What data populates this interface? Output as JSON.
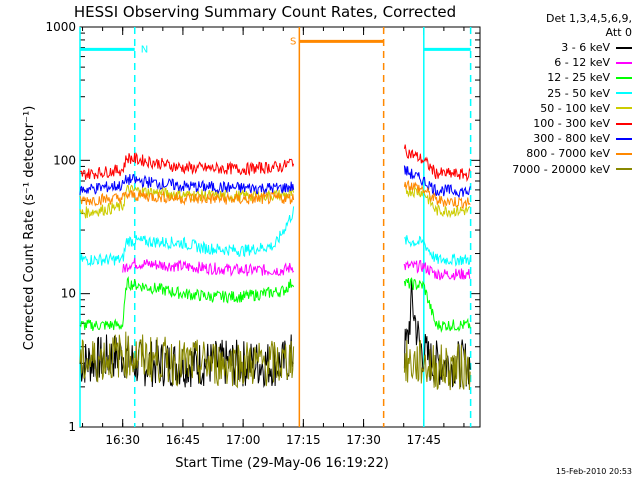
{
  "chart_data": {
    "type": "line",
    "title": "HESSI Observing Summary Count Rates, Corrected",
    "xlabel": "Start Time (29-May-06 16:19:22)",
    "ylabel": "Corrected Count Rate (s⁻¹ detector⁻¹)",
    "x_units": "minutes",
    "xlim": [
      "16:19:22",
      "17:59:00"
    ],
    "ylim": [
      1,
      1000
    ],
    "y_scale": "log",
    "x_ticks": [
      "16:30",
      "16:45",
      "17:00",
      "17:15",
      "17:30",
      "17:45"
    ],
    "y_ticks": [
      "1",
      "10",
      "100",
      "1000"
    ],
    "gaps": [
      [
        "17:12:40",
        "17:40:00"
      ]
    ],
    "series": [
      {
        "name": "3 - 6 keV",
        "color": "#000000",
        "x": [
          "16:19:22",
          "16:30:00",
          "16:33:00",
          "16:45:00",
          "17:00:00",
          "17:10:00",
          "17:12:40",
          "17:40:00",
          "17:41:00",
          "17:42:00",
          "17:44:00",
          "17:47:00",
          "17:55:00",
          "17:56:40"
        ],
        "y": [
          3.0,
          3.5,
          3.0,
          3.0,
          3.0,
          3.0,
          3.5,
          3.5,
          4.5,
          9.0,
          4.0,
          3.0,
          3.0,
          3.0
        ]
      },
      {
        "name": "6 - 12 keV",
        "color": "#ff00ff",
        "x": [
          "16:30:00",
          "16:32:00",
          "16:45:00",
          "17:00:00",
          "17:10:00",
          "17:12:40",
          "17:40:00",
          "17:45:00",
          "17:48:00",
          "17:56:40"
        ],
        "y": [
          15.0,
          17.0,
          16.0,
          15.0,
          15.0,
          16.0,
          16.0,
          16.0,
          14.0,
          14.0
        ]
      },
      {
        "name": "12 - 25 keV",
        "color": "#00ff00",
        "x": [
          "16:19:22",
          "16:30:00",
          "16:31:00",
          "16:45:00",
          "16:52:00",
          "17:00:00",
          "17:10:00",
          "17:12:40",
          "17:40:00",
          "17:45:00",
          "17:48:00",
          "17:56:40"
        ],
        "y": [
          5.8,
          5.8,
          12.0,
          10.0,
          9.5,
          9.5,
          10.5,
          12.5,
          12.0,
          11.5,
          5.8,
          5.8
        ]
      },
      {
        "name": "25 - 50 keV",
        "color": "#00ffff",
        "x": [
          "16:19:22",
          "16:30:00",
          "16:31:00",
          "16:45:00",
          "16:50:00",
          "17:00:00",
          "17:08:00",
          "17:12:40",
          "17:40:00",
          "17:45:00",
          "17:48:00",
          "17:56:40"
        ],
        "y": [
          18.0,
          18.0,
          25.0,
          24.0,
          22.0,
          21.0,
          23.0,
          42.0,
          25.0,
          24.0,
          18.0,
          18.0
        ]
      },
      {
        "name": "50 - 100 keV",
        "color": "#cccc00",
        "x": [
          "16:19:22",
          "16:30:00",
          "16:31:00",
          "16:45:00",
          "17:00:00",
          "17:10:00",
          "17:12:40",
          "17:40:00",
          "17:45:00",
          "17:48:00",
          "17:56:40"
        ],
        "y": [
          40.0,
          45.0,
          60.0,
          55.0,
          54.0,
          55.0,
          56.0,
          60.0,
          58.0,
          42.0,
          42.0
        ]
      },
      {
        "name": "100 - 300 keV",
        "color": "#ff0000",
        "x": [
          "16:19:22",
          "16:30:00",
          "16:31:00",
          "16:45:00",
          "17:00:00",
          "17:10:00",
          "17:12:40",
          "17:40:00",
          "17:45:00",
          "17:48:00",
          "17:56:40"
        ],
        "y": [
          78.0,
          85.0,
          105.0,
          88.0,
          86.0,
          90.0,
          100.0,
          120.0,
          100.0,
          80.0,
          78.0
        ]
      },
      {
        "name": "300 - 800 keV",
        "color": "#0000ff",
        "x": [
          "16:19:22",
          "16:30:00",
          "16:31:00",
          "16:45:00",
          "17:00:00",
          "17:10:00",
          "17:12:40",
          "17:40:00",
          "17:45:00",
          "17:48:00",
          "17:56:40"
        ],
        "y": [
          60.0,
          65.0,
          72.0,
          64.0,
          62.0,
          62.0,
          64.0,
          85.0,
          70.0,
          60.0,
          58.0
        ]
      },
      {
        "name": "800 - 7000 keV",
        "color": "#ff8800",
        "x": [
          "16:19:22",
          "16:30:00",
          "16:31:00",
          "16:45:00",
          "17:00:00",
          "17:10:00",
          "17:12:40",
          "17:40:00",
          "17:45:00",
          "17:48:00",
          "17:56:40"
        ],
        "y": [
          50.0,
          52.0,
          55.0,
          52.0,
          51.0,
          52.0,
          52.0,
          68.0,
          60.0,
          50.0,
          48.0
        ]
      },
      {
        "name": "7000 - 20000 keV",
        "color": "#888800",
        "x": [
          "16:19:22",
          "16:30:00",
          "16:45:00",
          "17:00:00",
          "17:10:00",
          "17:12:40",
          "17:40:00",
          "17:45:00",
          "17:48:00",
          "17:56:40"
        ],
        "y": [
          3.0,
          3.5,
          3.0,
          3.0,
          3.0,
          3.5,
          3.0,
          3.0,
          2.8,
          2.8
        ]
      }
    ],
    "annotations": [
      {
        "text": "N",
        "color": "#00ffff",
        "x_start": "16:19:22",
        "x_end": "16:33:00",
        "y": 680
      },
      {
        "text": "S",
        "color": "#ff8800",
        "x_start": "17:14:00",
        "x_end": "17:35:00",
        "y": 780
      },
      {
        "text": "",
        "color": "#00ffff",
        "x_start": "17:45:00",
        "x_end": "17:56:40",
        "y": 680
      }
    ],
    "vertical_lines": [
      {
        "x": "16:19:22",
        "color": "#00ffff",
        "style": "solid"
      },
      {
        "x": "16:33:00",
        "color": "#00ffff",
        "style": "dashed"
      },
      {
        "x": "17:14:00",
        "color": "#ff8800",
        "style": "solid"
      },
      {
        "x": "17:35:00",
        "color": "#ff8800",
        "style": "dashed"
      },
      {
        "x": "17:45:00",
        "color": "#00ffff",
        "style": "solid"
      },
      {
        "x": "17:56:40",
        "color": "#00ffff",
        "style": "dashed"
      }
    ],
    "grid": false
  },
  "legend": {
    "header_line1": "Det 1,3,4,5,6,9,",
    "header_line2": "Att 0",
    "position": "right"
  },
  "footer": {
    "date": "15-Feb-2010 20:53"
  }
}
